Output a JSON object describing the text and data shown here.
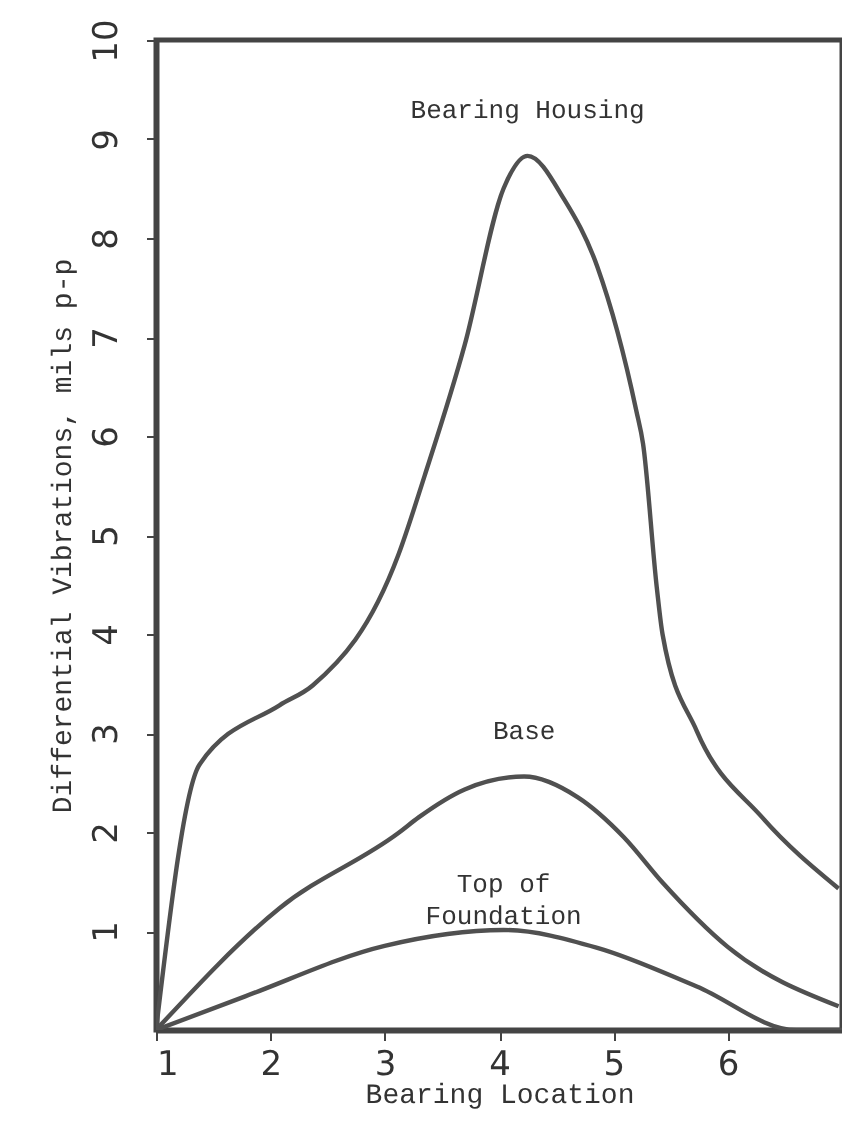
{
  "chart_data": {
    "type": "line",
    "xlabel": "Bearing Location",
    "ylabel": "Differential Vibrations, mils p-p",
    "xlim": [
      1,
      7
    ],
    "ylim": [
      0,
      10
    ],
    "xticks": [
      1,
      2,
      3,
      4,
      5,
      6
    ],
    "yticks": [
      1,
      2,
      3,
      4,
      5,
      6,
      7,
      8,
      9,
      10
    ],
    "grid": false,
    "line_style": "solid",
    "marker": "none",
    "series": [
      {
        "name": "Bearing Housing",
        "color": "#505050",
        "x": [
          1,
          1.38,
          2.08,
          2.37,
          3.12,
          3.35,
          3.7,
          4.04,
          4.25,
          4.57,
          4.86,
          5.2,
          5.26,
          5.38,
          5.43,
          5.73,
          6.3,
          6.97
        ],
        "values": [
          0,
          2.68,
          3.28,
          3.48,
          4.8,
          5.6,
          6.92,
          8.5,
          8.83,
          8.39,
          7.71,
          6.26,
          5.92,
          4.47,
          4.0,
          3.02,
          2.15,
          1.43
        ]
      },
      {
        "name": "Base",
        "color": "#505050",
        "x": [
          1,
          2.08,
          3.12,
          3.3,
          3.7,
          4.22,
          4.69,
          5.09,
          5.43,
          6.0,
          6.97
        ],
        "values": [
          0,
          1.23,
          1.99,
          2.15,
          2.43,
          2.56,
          2.35,
          1.95,
          1.49,
          0.84,
          0.24
        ]
      },
      {
        "name": "Top of Foundation",
        "color": "#505050",
        "x": [
          1,
          1.78,
          3.0,
          4.04,
          4.86,
          5.73,
          6.6,
          7
        ],
        "values": [
          0,
          0.34,
          0.85,
          1.01,
          0.83,
          0.44,
          0,
          0
        ]
      }
    ]
  }
}
